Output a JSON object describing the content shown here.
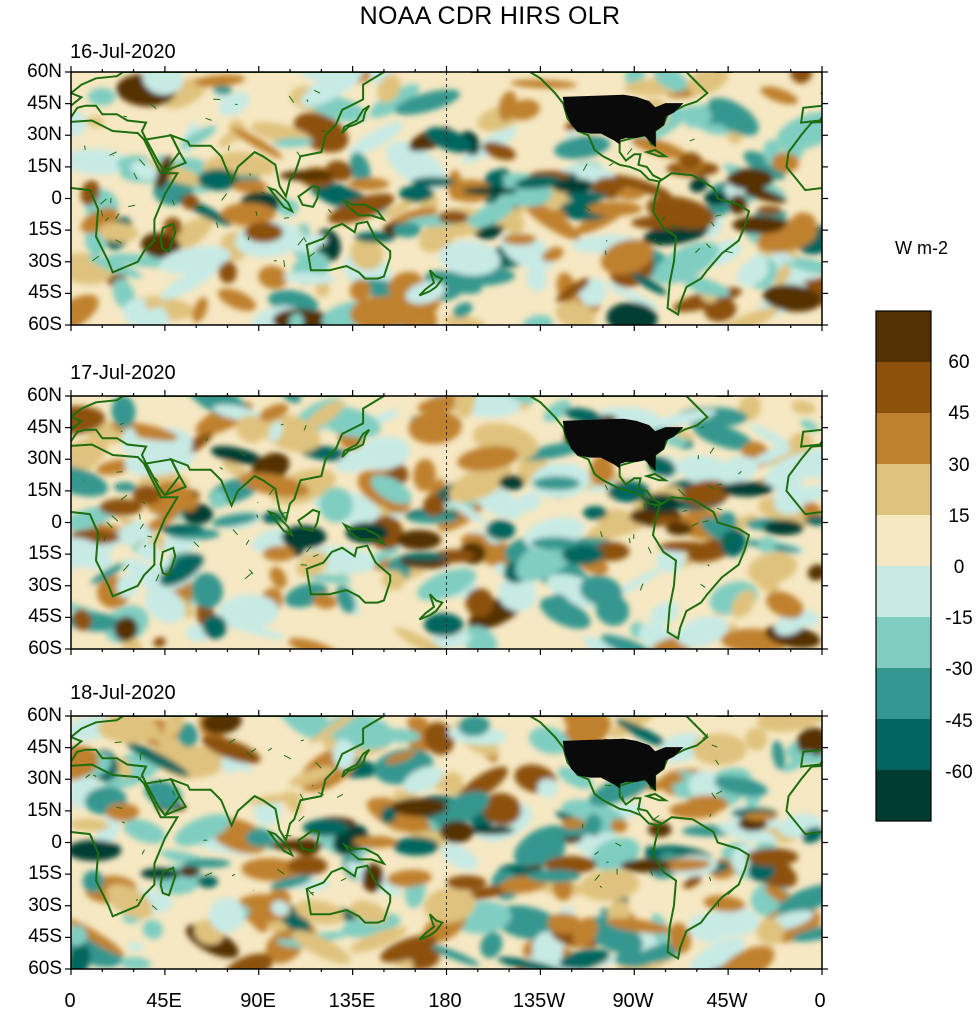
{
  "title": "NOAA CDR HIRS OLR",
  "panels": [
    {
      "date": "16-Jul-2020"
    },
    {
      "date": "17-Jul-2020"
    },
    {
      "date": "18-Jul-2020"
    }
  ],
  "lat_labels": [
    "60N",
    "45N",
    "30N",
    "15N",
    "0",
    "15S",
    "30S",
    "45S",
    "60S"
  ],
  "lon_labels": [
    "0",
    "45E",
    "90E",
    "135E",
    "180",
    "135W",
    "90W",
    "45W",
    "0"
  ],
  "colorbar": {
    "unit": "W m-2",
    "labels": [
      "60",
      "45",
      "30",
      "15",
      "0",
      "-15",
      "-30",
      "-45",
      "-60"
    ],
    "colors": [
      "#543005",
      "#8c510a",
      "#bf812d",
      "#dfc27d",
      "#f6e8c3",
      "#c7eae5",
      "#80cdc1",
      "#35978f",
      "#01665e",
      "#003c30"
    ]
  },
  "colors": {
    "coastline": "#1e6e10",
    "land_mask": "#0a0a0a"
  }
}
